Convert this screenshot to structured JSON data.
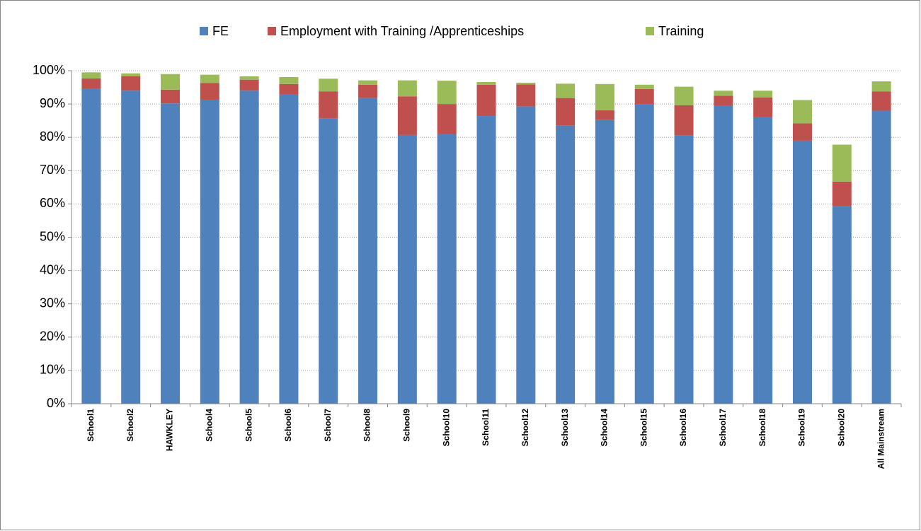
{
  "chart_data": {
    "type": "stacked_bar",
    "categories": [
      "School1",
      "School2",
      "HAWKLEY",
      "School4",
      "School5",
      "School6",
      "School7",
      "School8",
      "School9",
      "School10",
      "School11",
      "School12",
      "School13",
      "School14",
      "School15",
      "School16",
      "School17",
      "School18",
      "School19",
      "School20",
      "All Mainstream"
    ],
    "series": [
      {
        "name": "FE",
        "color": "#4f81bd",
        "values": [
          94.5,
          94,
          90.2,
          91.3,
          94,
          92.8,
          85.7,
          91.8,
          80.7,
          80.9,
          86.4,
          89.3,
          83.5,
          85.2,
          90,
          80.6,
          89.5,
          86,
          79,
          59.3,
          88
        ]
      },
      {
        "name": "Employment with Training /Apprenticeships",
        "color": "#c0504d",
        "values": [
          3.2,
          4.3,
          4.1,
          5,
          3.3,
          3.2,
          8.1,
          4,
          11.6,
          9.1,
          9.4,
          6.6,
          8.3,
          2.9,
          4.5,
          9,
          3,
          6,
          5.2,
          7.4,
          5.8
        ]
      },
      {
        "name": "Training",
        "color": "#9bbb59",
        "values": [
          1.8,
          0.9,
          4.7,
          2.5,
          1,
          2.1,
          3.8,
          1.3,
          4.8,
          7,
          0.8,
          0.5,
          4.3,
          7.9,
          1.3,
          5.6,
          1.5,
          2,
          7,
          11.1,
          3
        ]
      }
    ],
    "ylim": [
      0,
      100
    ],
    "yticks": [
      {
        "value": 0,
        "label": "0%"
      },
      {
        "value": 10,
        "label": "10%"
      },
      {
        "value": 20,
        "label": "20%"
      },
      {
        "value": 30,
        "label": "30%"
      },
      {
        "value": 40,
        "label": "40%"
      },
      {
        "value": 50,
        "label": "50%"
      },
      {
        "value": 60,
        "label": "60%"
      },
      {
        "value": 70,
        "label": "70%"
      },
      {
        "value": 80,
        "label": "80%"
      },
      {
        "value": 90,
        "label": "90%"
      },
      {
        "value": 100,
        "label": "100%"
      }
    ],
    "grid": true,
    "legend": "top"
  }
}
